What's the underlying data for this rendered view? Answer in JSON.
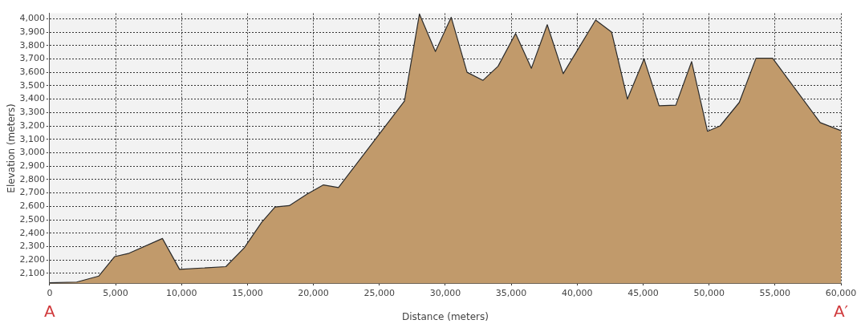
{
  "chart_data": {
    "type": "area",
    "xlabel": "Distance (meters)",
    "ylabel": "Elevation (meters)",
    "x": [
      0,
      2050,
      3730,
      4930,
      6020,
      8550,
      9850,
      13360,
      14750,
      16070,
      17090,
      18170,
      19500,
      20760,
      21900,
      26900,
      28040,
      29250,
      30450,
      31650,
      32860,
      34000,
      35330,
      36530,
      37730,
      38940,
      41400,
      42610,
      43810,
      45070,
      46210,
      47480,
      48680,
      49880,
      50840,
      52290,
      53560,
      54820,
      58430,
      60000
    ],
    "series": [
      {
        "color": "#c19a6b",
        "values": [
          2030,
          2035,
          2080,
          2225,
          2250,
          2360,
          2130,
          2150,
          2290,
          2480,
          2595,
          2605,
          2690,
          2760,
          2740,
          3385,
          4035,
          3755,
          4010,
          3600,
          3540,
          3645,
          3890,
          3630,
          3955,
          3590,
          3990,
          3900,
          3400,
          3700,
          3350,
          3355,
          3680,
          3160,
          3200,
          3375,
          3705,
          3705,
          3225,
          3165
        ]
      }
    ],
    "xlim": [
      0,
      60000
    ],
    "xticks": [
      0,
      {
        "value": 5000,
        "label": "5,000"
      },
      {
        "value": 10000,
        "label": "10,000"
      },
      {
        "value": 15000,
        "label": "15,000"
      },
      {
        "value": 20000,
        "label": "20,000"
      },
      {
        "value": 25000,
        "label": "25,000"
      },
      {
        "value": 30000,
        "label": "30,000"
      },
      {
        "value": 35000,
        "label": "35,000"
      },
      {
        "value": 40000,
        "label": "40,000"
      },
      {
        "value": 45000,
        "label": "45,000"
      },
      {
        "value": 50000,
        "label": "50,000"
      },
      {
        "value": 55000,
        "label": "55,000"
      },
      {
        "value": 60000,
        "label": "60,000"
      }
    ],
    "ylim": [
      2025,
      4040
    ],
    "yticks": [
      {
        "value": 2100,
        "label": "2,100"
      },
      {
        "value": 2200,
        "label": "2,200"
      },
      {
        "value": 2300,
        "label": "2,300"
      },
      {
        "value": 2400,
        "label": "2,400"
      },
      {
        "value": 2500,
        "label": "2,500"
      },
      {
        "value": 2600,
        "label": "2,600"
      },
      {
        "value": 2700,
        "label": "2,700"
      },
      {
        "value": 2800,
        "label": "2,800"
      },
      {
        "value": 2900,
        "label": "2,900"
      },
      {
        "value": 3000,
        "label": "3,000"
      },
      {
        "value": 3100,
        "label": "3,100"
      },
      {
        "value": 3200,
        "label": "3,200"
      },
      {
        "value": 3300,
        "label": "3,300"
      },
      {
        "value": 3400,
        "label": "3,400"
      },
      {
        "value": 3500,
        "label": "3,500"
      },
      {
        "value": 3600,
        "label": "3,600"
      },
      {
        "value": 3700,
        "label": "3,700"
      },
      {
        "value": 3800,
        "label": "3,800"
      },
      {
        "value": 3900,
        "label": "3,900"
      },
      {
        "value": 4000,
        "label": "4,000"
      }
    ],
    "grid": true,
    "legend": false,
    "marker": "none",
    "annotations": [
      "A",
      "A′"
    ]
  }
}
